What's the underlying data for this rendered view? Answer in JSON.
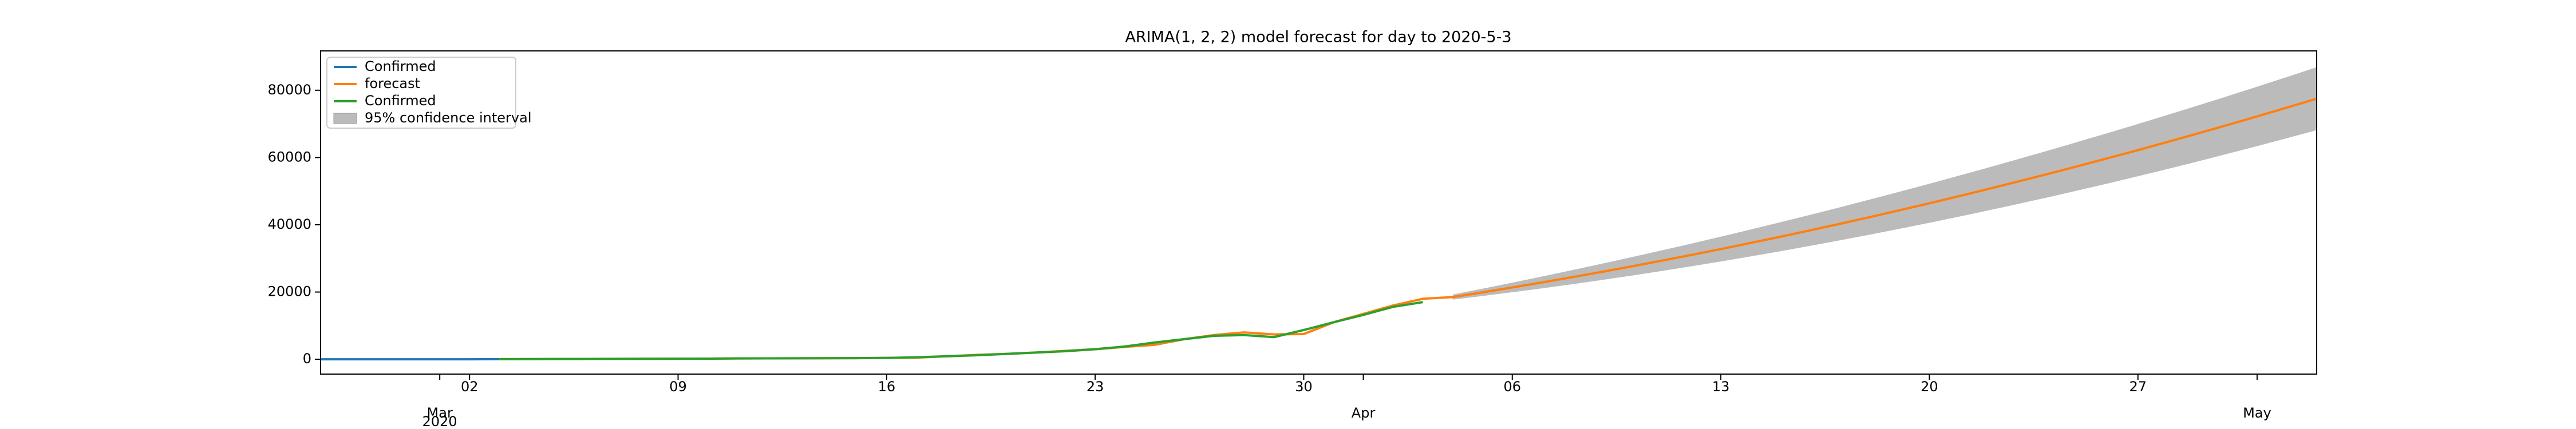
{
  "chart_data": {
    "type": "line",
    "title": "ARIMA(1, 2, 2) model forecast for day to 2020-5-3",
    "xlim": [
      "2020-02-26",
      "2020-05-03"
    ],
    "xticks": [
      {
        "value": "2020-03-01",
        "label": "Mar",
        "sublabel": "2020"
      },
      {
        "value": "2020-03-02",
        "label": "02"
      },
      {
        "value": "2020-03-09",
        "label": "09"
      },
      {
        "value": "2020-03-16",
        "label": "16"
      },
      {
        "value": "2020-03-23",
        "label": "23"
      },
      {
        "value": "2020-03-30",
        "label": "30"
      },
      {
        "value": "2020-04-01",
        "label": "Apr"
      },
      {
        "value": "2020-04-06",
        "label": "06"
      },
      {
        "value": "2020-04-13",
        "label": "13"
      },
      {
        "value": "2020-04-20",
        "label": "20"
      },
      {
        "value": "2020-04-27",
        "label": "27"
      },
      {
        "value": "2020-05-01",
        "label": "May"
      }
    ],
    "ylim": [
      -4400,
      91700
    ],
    "yticks": [
      0,
      20000,
      40000,
      60000,
      80000
    ],
    "legend": "upper left",
    "series": [
      {
        "name": "Confirmed",
        "color": "#1f77b4",
        "x": [
          "2020-02-26",
          "2020-02-27",
          "2020-02-28",
          "2020-02-29",
          "2020-03-01",
          "2020-03-02",
          "2020-03-03"
        ],
        "values": [
          0,
          0,
          0,
          0,
          0,
          0,
          50
        ]
      },
      {
        "name": "forecast",
        "color": "#ff7f0e",
        "x": [
          "2020-03-03",
          "2020-03-04",
          "2020-03-05",
          "2020-03-06",
          "2020-03-07",
          "2020-03-08",
          "2020-03-09",
          "2020-03-10",
          "2020-03-11",
          "2020-03-12",
          "2020-03-13",
          "2020-03-14",
          "2020-03-15",
          "2020-03-16",
          "2020-03-17",
          "2020-03-18",
          "2020-03-19",
          "2020-03-20",
          "2020-03-21",
          "2020-03-22",
          "2020-03-23",
          "2020-03-24",
          "2020-03-25",
          "2020-03-26",
          "2020-03-27",
          "2020-03-28",
          "2020-03-29",
          "2020-03-30",
          "2020-03-31",
          "2020-04-01",
          "2020-04-02",
          "2020-04-03",
          "2020-04-04",
          "2020-04-05",
          "2020-04-06",
          "2020-04-07",
          "2020-04-08",
          "2020-04-09",
          "2020-04-10",
          "2020-04-11",
          "2020-04-12",
          "2020-04-13",
          "2020-04-14",
          "2020-04-15",
          "2020-04-16",
          "2020-04-17",
          "2020-04-18",
          "2020-04-19",
          "2020-04-20",
          "2020-04-21",
          "2020-04-22",
          "2020-04-23",
          "2020-04-24",
          "2020-04-25",
          "2020-04-26",
          "2020-04-27",
          "2020-04-28",
          "2020-04-29",
          "2020-04-30",
          "2020-05-01",
          "2020-05-02",
          "2020-05-03"
        ],
        "values": [
          50,
          60,
          80,
          100,
          120,
          150,
          180,
          200,
          250,
          280,
          300,
          320,
          350,
          420,
          500,
          900,
          1300,
          1600,
          2000,
          2500,
          3000,
          3700,
          4300,
          6000,
          7200,
          8000,
          7400,
          7500,
          11000,
          13500,
          16000,
          18000,
          18500,
          19907,
          21360,
          22857,
          24398,
          25985,
          27616,
          29293,
          31014,
          32779,
          34590,
          36445,
          38346,
          40291,
          42280,
          44315,
          46394,
          48519,
          50688,
          52901,
          55160,
          57463,
          59812,
          62205,
          64642,
          67125,
          69652,
          72224,
          74841,
          77498
        ]
      },
      {
        "name": "Confirmed",
        "color": "#2ca02c",
        "x": [
          "2020-03-03",
          "2020-03-04",
          "2020-03-05",
          "2020-03-06",
          "2020-03-07",
          "2020-03-08",
          "2020-03-09",
          "2020-03-10",
          "2020-03-11",
          "2020-03-12",
          "2020-03-13",
          "2020-03-14",
          "2020-03-15",
          "2020-03-16",
          "2020-03-17",
          "2020-03-18",
          "2020-03-19",
          "2020-03-20",
          "2020-03-21",
          "2020-03-22",
          "2020-03-23",
          "2020-03-24",
          "2020-03-25",
          "2020-03-26",
          "2020-03-27",
          "2020-03-28",
          "2020-03-29",
          "2020-03-30",
          "2020-03-31",
          "2020-04-01",
          "2020-04-02",
          "2020-04-03"
        ],
        "values": [
          50,
          60,
          80,
          100,
          120,
          150,
          180,
          200,
          250,
          280,
          300,
          320,
          350,
          400,
          600,
          900,
          1200,
          1600,
          2000,
          2400,
          3000,
          3800,
          5000,
          6000,
          7000,
          7200,
          6600,
          8700,
          11000,
          13200,
          15600,
          17000
        ]
      }
    ],
    "interval": {
      "name": "95% confidence interval",
      "color": "#bbbbbb",
      "x": [
        "2020-04-04",
        "2020-04-05",
        "2020-04-06",
        "2020-04-07",
        "2020-04-08",
        "2020-04-09",
        "2020-04-10",
        "2020-04-11",
        "2020-04-12",
        "2020-04-13",
        "2020-04-14",
        "2020-04-15",
        "2020-04-16",
        "2020-04-17",
        "2020-04-18",
        "2020-04-19",
        "2020-04-20",
        "2020-04-21",
        "2020-04-22",
        "2020-04-23",
        "2020-04-24",
        "2020-04-25",
        "2020-04-26",
        "2020-04-27",
        "2020-04-28",
        "2020-04-29",
        "2020-04-30",
        "2020-05-01",
        "2020-05-02",
        "2020-05-03"
      ],
      "lower": [
        17750,
        18818,
        19936,
        21100,
        22312,
        23572,
        24880,
        26236,
        27640,
        29090,
        30590,
        32137,
        33732,
        35375,
        37064,
        38803,
        40588,
        42423,
        44304,
        46233,
        48210,
        50235,
        52308,
        54429,
        56596,
        58813,
        61076,
        63388,
        65747,
        68149
      ],
      "upper": [
        19250,
        20996,
        22784,
        24614,
        26484,
        28398,
        30352,
        32350,
        34388,
        36468,
        38590,
        40753,
        42960,
        45207,
        47496,
        49827,
        52200,
        54615,
        57072,
        59569,
        62110,
        64691,
        67316,
        69981,
        72688,
        75437,
        78228,
        81060,
        83935,
        86847
      ]
    }
  }
}
